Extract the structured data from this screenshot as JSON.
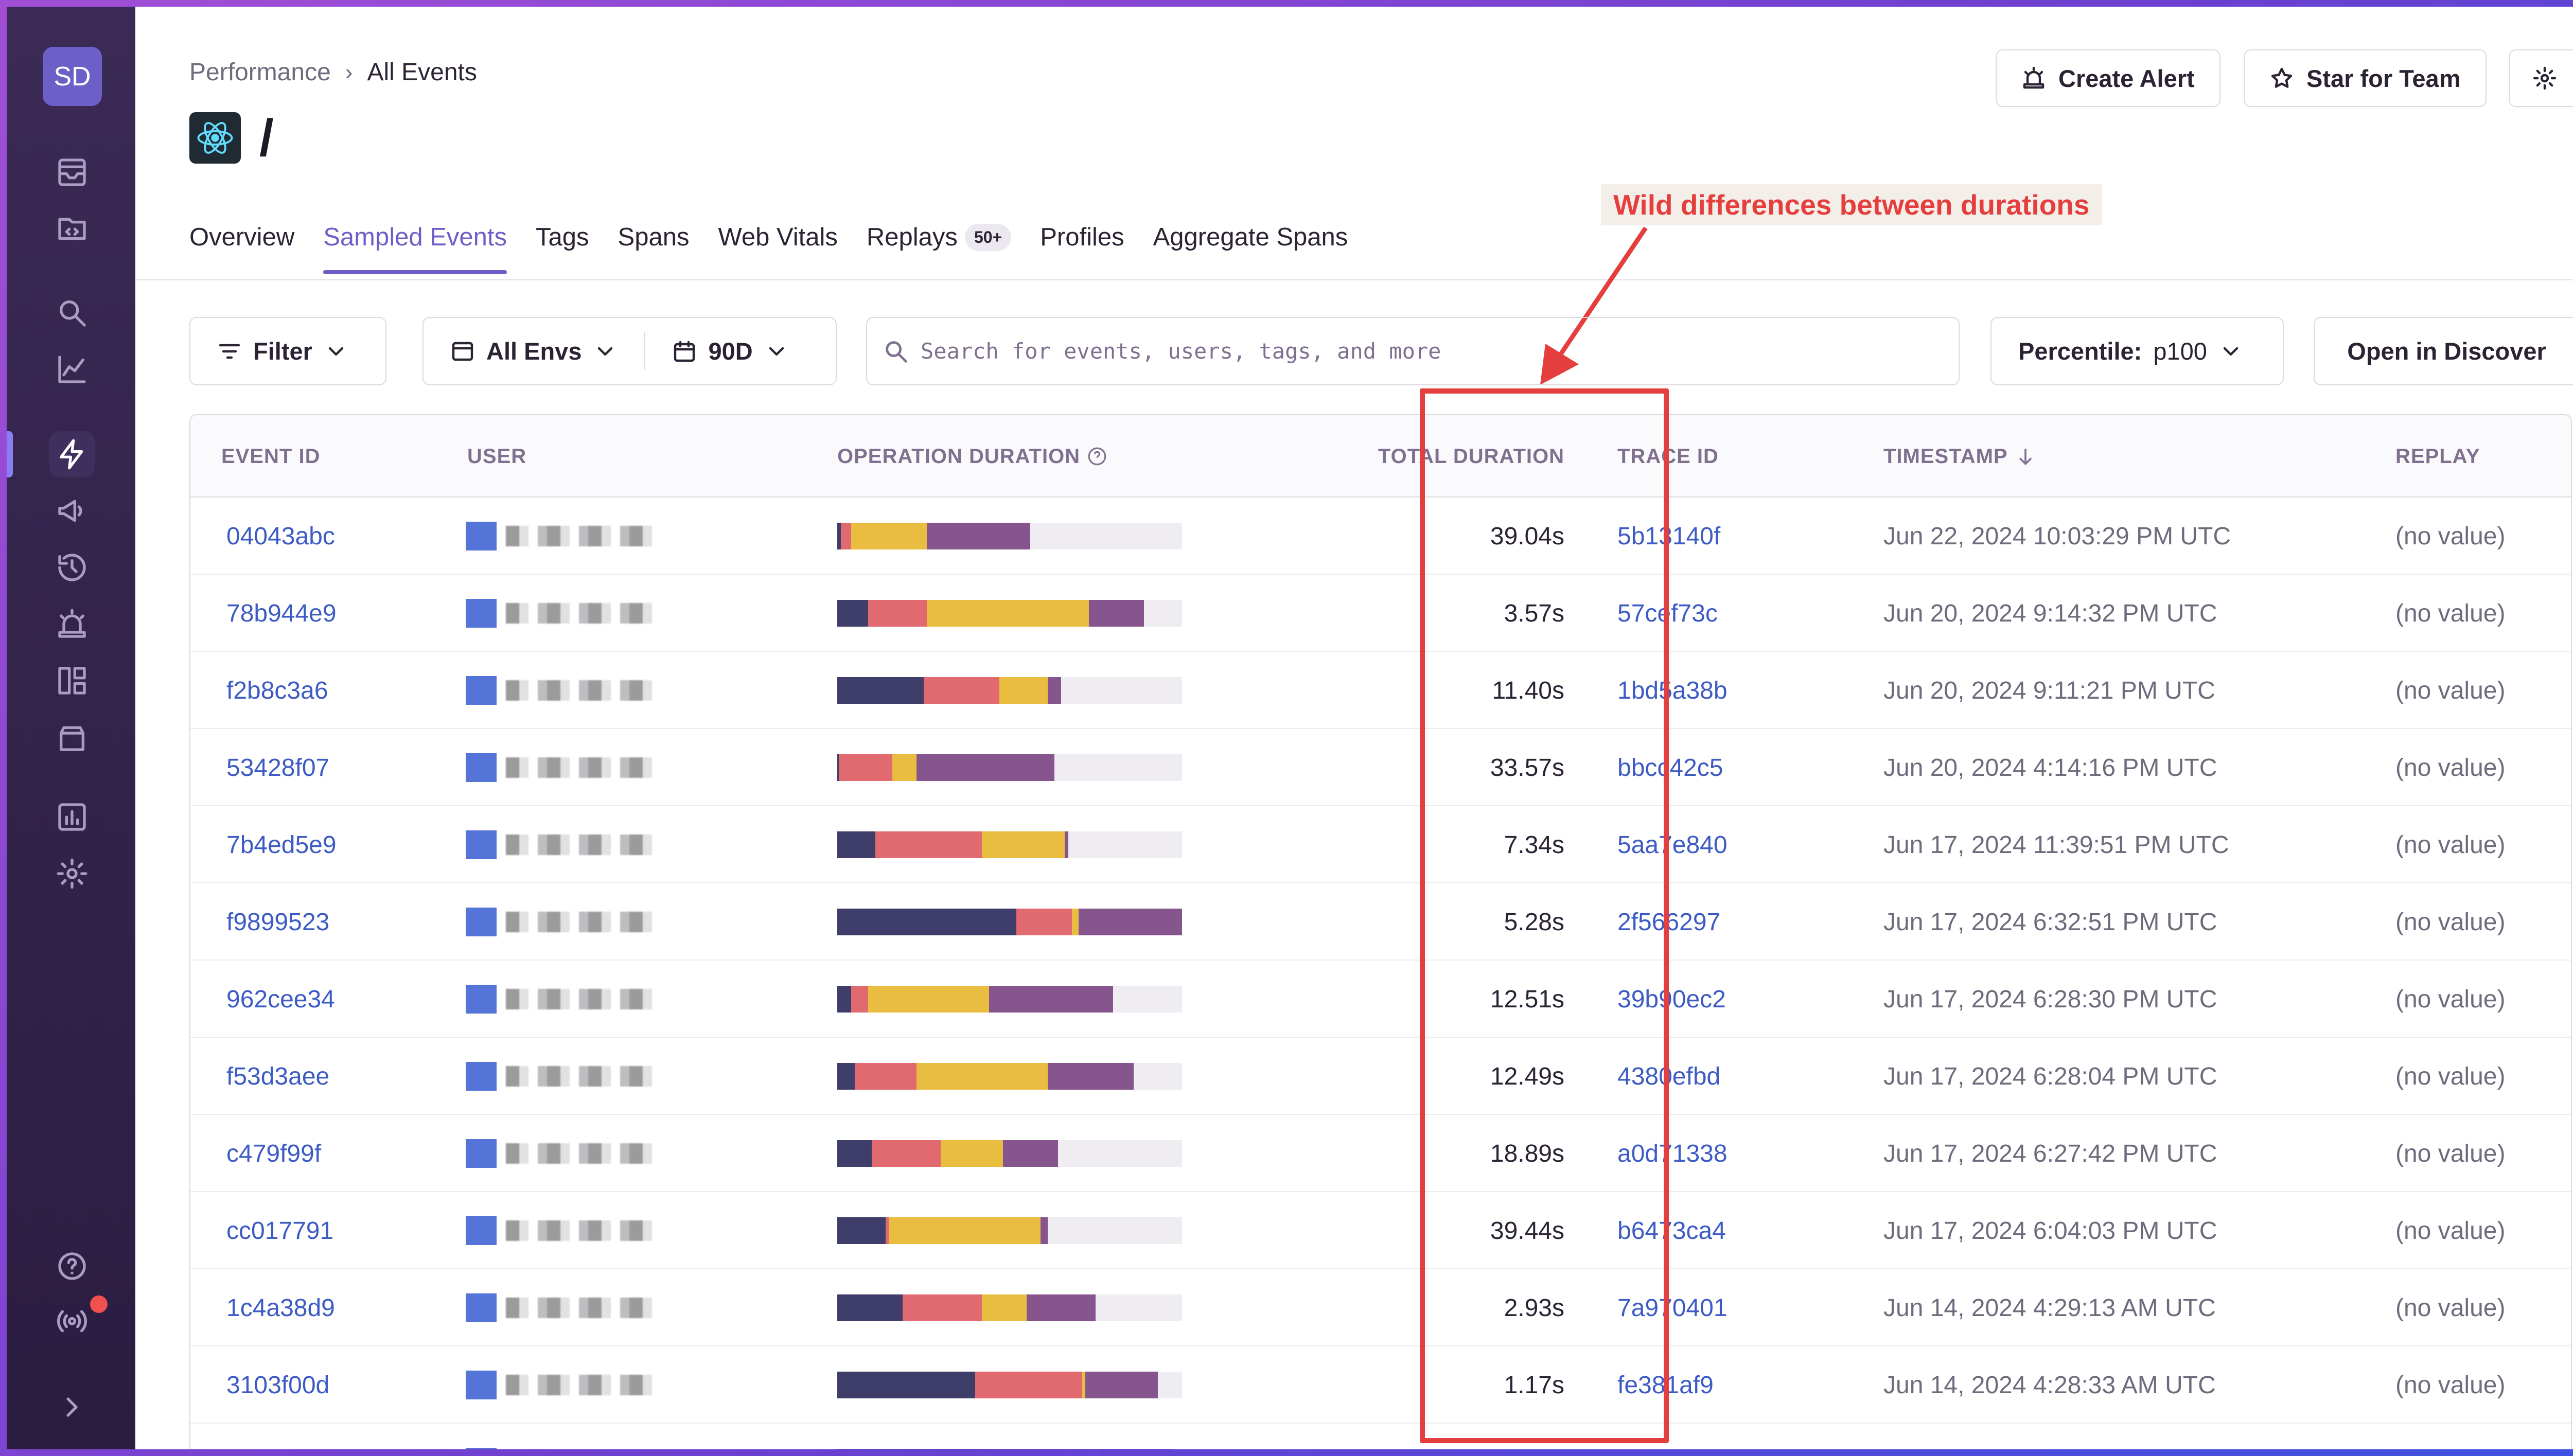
{
  "sidebar": {
    "avatar": "SD"
  },
  "breadcrumb": {
    "parent": "Performance",
    "current": "All Events"
  },
  "page_title": "/",
  "header_buttons": {
    "create_alert": "Create Alert",
    "star": "Star for Team"
  },
  "tabs": [
    {
      "label": "Overview"
    },
    {
      "label": "Sampled Events",
      "active": true
    },
    {
      "label": "Tags"
    },
    {
      "label": "Spans"
    },
    {
      "label": "Web Vitals"
    },
    {
      "label": "Replays",
      "badge": "50+"
    },
    {
      "label": "Profiles"
    },
    {
      "label": "Aggregate Spans"
    }
  ],
  "annotation": "Wild differences between durations",
  "toolbar": {
    "filter": "Filter",
    "envs": "All Envs",
    "period": "90D",
    "search_placeholder": "Search for events, users, tags, and more",
    "percentile_label": "Percentile:",
    "percentile_value": "p100",
    "open_discover": "Open in Discover"
  },
  "columns": {
    "event_id": "EVENT ID",
    "user": "USER",
    "op_duration": "OPERATION DURATION",
    "total_duration": "TOTAL DURATION",
    "trace_id": "TRACE ID",
    "timestamp": "TIMESTAMP",
    "replay": "REPLAY"
  },
  "bar_colors": [
    "#3f3e6b",
    "#e06a70",
    "#e9bd3f",
    "#87558e"
  ],
  "rows": [
    {
      "event_id": "04043abc",
      "bar": [
        0.01,
        0.03,
        0.22,
        0.3
      ],
      "total": "39.04s",
      "trace": "5b13140f",
      "timestamp": "Jun 22, 2024 10:03:29 PM UTC",
      "replay": "(no value)"
    },
    {
      "event_id": "78b944e9",
      "bar": [
        0.09,
        0.17,
        0.47,
        0.16
      ],
      "total": "3.57s",
      "trace": "57cef73c",
      "timestamp": "Jun 20, 2024 9:14:32 PM UTC",
      "replay": "(no value)"
    },
    {
      "event_id": "f2b8c3a6",
      "bar": [
        0.25,
        0.22,
        0.14,
        0.04
      ],
      "total": "11.40s",
      "trace": "1bd5a38b",
      "timestamp": "Jun 20, 2024 9:11:21 PM UTC",
      "replay": "(no value)"
    },
    {
      "event_id": "53428f07",
      "bar": [
        0.005,
        0.155,
        0.07,
        0.4
      ],
      "total": "33.57s",
      "trace": "bbcc42c5",
      "timestamp": "Jun 20, 2024 4:14:16 PM UTC",
      "replay": "(no value)"
    },
    {
      "event_id": "7b4ed5e9",
      "bar": [
        0.11,
        0.31,
        0.24,
        0.01
      ],
      "total": "7.34s",
      "trace": "5aa7e840",
      "timestamp": "Jun 17, 2024 11:39:51 PM UTC",
      "replay": "(no value)"
    },
    {
      "event_id": "f9899523",
      "bar": [
        0.52,
        0.16,
        0.02,
        0.3
      ],
      "total": "5.28s",
      "trace": "2f566297",
      "timestamp": "Jun 17, 2024 6:32:51 PM UTC",
      "replay": "(no value)"
    },
    {
      "event_id": "962cee34",
      "bar": [
        0.04,
        0.05,
        0.35,
        0.36
      ],
      "total": "12.51s",
      "trace": "39b90ec2",
      "timestamp": "Jun 17, 2024 6:28:30 PM UTC",
      "replay": "(no value)"
    },
    {
      "event_id": "f53d3aee",
      "bar": [
        0.05,
        0.18,
        0.38,
        0.25
      ],
      "total": "12.49s",
      "trace": "4380efbd",
      "timestamp": "Jun 17, 2024 6:28:04 PM UTC",
      "replay": "(no value)"
    },
    {
      "event_id": "c479f99f",
      "bar": [
        0.1,
        0.2,
        0.18,
        0.16
      ],
      "total": "18.89s",
      "trace": "a0d71338",
      "timestamp": "Jun 17, 2024 6:27:42 PM UTC",
      "replay": "(no value)"
    },
    {
      "event_id": "cc017791",
      "bar": [
        0.14,
        0.01,
        0.44,
        0.02
      ],
      "total": "39.44s",
      "trace": "b6473ca4",
      "timestamp": "Jun 17, 2024 6:04:03 PM UTC",
      "replay": "(no value)"
    },
    {
      "event_id": "1c4a38d9",
      "bar": [
        0.19,
        0.23,
        0.13,
        0.2
      ],
      "total": "2.93s",
      "trace": "7a970401",
      "timestamp": "Jun 14, 2024 4:29:13 AM UTC",
      "replay": "(no value)"
    },
    {
      "event_id": "3103f00d",
      "bar": [
        0.4,
        0.31,
        0.01,
        0.21
      ],
      "total": "1.17s",
      "trace": "fe381af9",
      "timestamp": "Jun 14, 2024 4:28:33 AM UTC",
      "replay": "(no value)"
    },
    {
      "event_id": "",
      "bar": [
        0.44,
        0.31,
        0.01,
        0.21
      ],
      "total": "",
      "trace": "",
      "timestamp": "",
      "replay": ""
    }
  ]
}
